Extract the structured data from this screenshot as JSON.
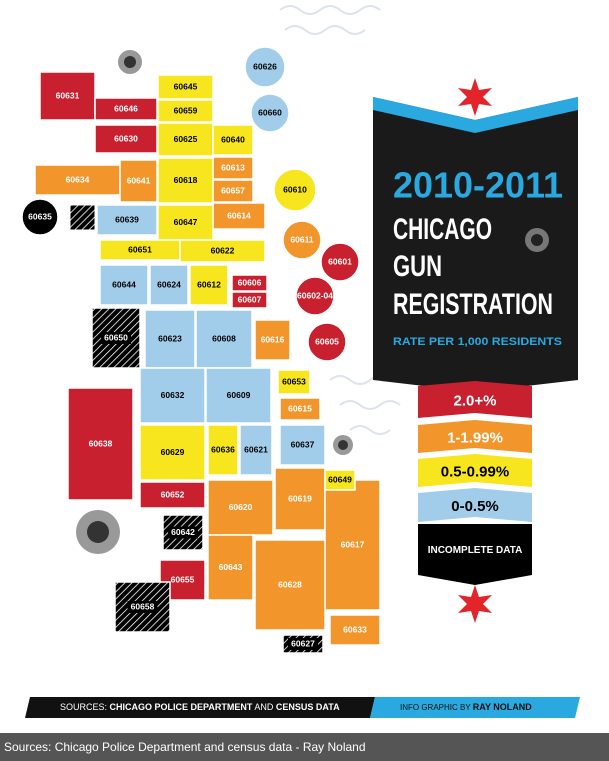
{
  "title": {
    "years": "2010-2011",
    "line1": "CHICAGO",
    "line2": "GUN",
    "line3": "REGISTRATION",
    "subtitle": "RATE PER 1,000 RESIDENTS"
  },
  "legend": [
    {
      "label": "2.0+%",
      "color": "#c8202f",
      "text_color": "#ffffff",
      "zips": [
        "60631",
        "60646",
        "60630",
        "60601",
        "60606",
        "60607",
        "60602-04",
        "60605",
        "60638",
        "60652",
        "60655"
      ]
    },
    {
      "label": "1-1.99%",
      "color": "#f2962b",
      "text_color": "#ffffff",
      "zips": [
        "60634",
        "60641",
        "60613",
        "60657",
        "60614",
        "60611",
        "60616",
        "60615",
        "60620",
        "60619",
        "60617",
        "60643",
        "60628",
        "60633"
      ]
    },
    {
      "label": "0.5-0.99%",
      "color": "#f7e61e",
      "text_color": "#000000",
      "zips": [
        "60645",
        "60659",
        "60625",
        "60640",
        "60618",
        "60647",
        "60610",
        "60651",
        "60622",
        "60612",
        "60653",
        "60629",
        "60636",
        "60649"
      ]
    },
    {
      "label": "0-0.5%",
      "color": "#a2cdea",
      "text_color": "#000000",
      "zips": [
        "60626",
        "60660",
        "60639",
        "60644",
        "60624",
        "60623",
        "60608",
        "60632",
        "60609",
        "60621",
        "60637"
      ]
    },
    {
      "label": "INCOMPLETE DATA",
      "color": "#000000",
      "text_color": "#ffffff",
      "zips": [
        "60635",
        "60650",
        "60642",
        "60658",
        "60627"
      ]
    }
  ],
  "footer": {
    "prefix": "SOURCES:",
    "source1": "CHICAGO POLICE DEPARTMENT",
    "joiner": "AND",
    "source2": "CENSUS DATA",
    "credit_prefix": "INFO GRAPHIC BY",
    "credit": "RAY NOLAND"
  },
  "caption": "Sources: Chicago Police Department and census data - Ray Noland"
}
